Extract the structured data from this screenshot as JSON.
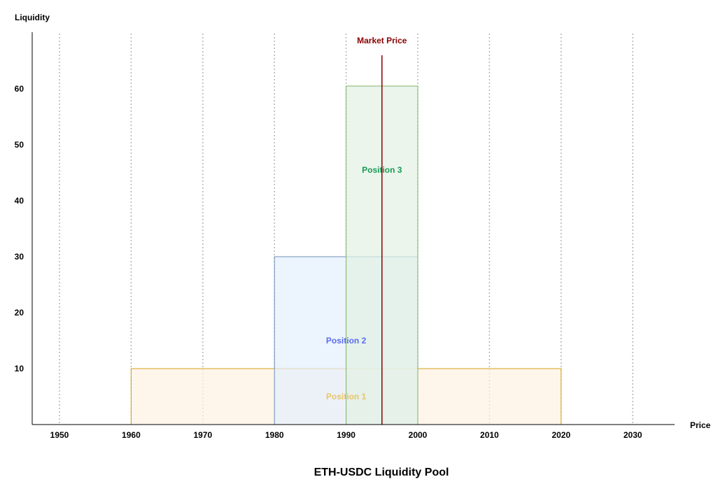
{
  "chart_data": {
    "type": "bar",
    "title": "ETH-USDC Liquidity Pool",
    "xlabel": "Price",
    "ylabel": "Liquidity",
    "xlim": [
      1946,
      2036
    ],
    "ylim": [
      0,
      70
    ],
    "x_ticks": [
      1950,
      1960,
      1970,
      1980,
      1990,
      2000,
      2010,
      2020,
      2030
    ],
    "y_ticks": [
      10,
      20,
      30,
      40,
      50,
      60
    ],
    "grid": "vertical dotted",
    "market_price": {
      "label": "Market Price",
      "value": 1995,
      "top": 66,
      "color": "#8b0000"
    },
    "positions": [
      {
        "name": "Position 1",
        "price_low": 1960,
        "price_high": 2020,
        "liquidity": 10,
        "fill": "#fdf1e3",
        "stroke": "#d4a017",
        "label_color": "#e8c56a",
        "label_y": 5
      },
      {
        "name": "Position 2",
        "price_low": 1980,
        "price_high": 2000,
        "liquidity": 30,
        "fill": "#e4effc",
        "stroke": "#6d8fb8",
        "label_color": "#5b6cf0",
        "label_y": 15
      },
      {
        "name": "Position 3",
        "price_low": 1990,
        "price_high": 2000,
        "liquidity": 60.5,
        "fill": "#e3f1e3",
        "stroke": "#7fb36a",
        "label_color": "#1a9a55",
        "label_y": 45.5
      }
    ]
  }
}
